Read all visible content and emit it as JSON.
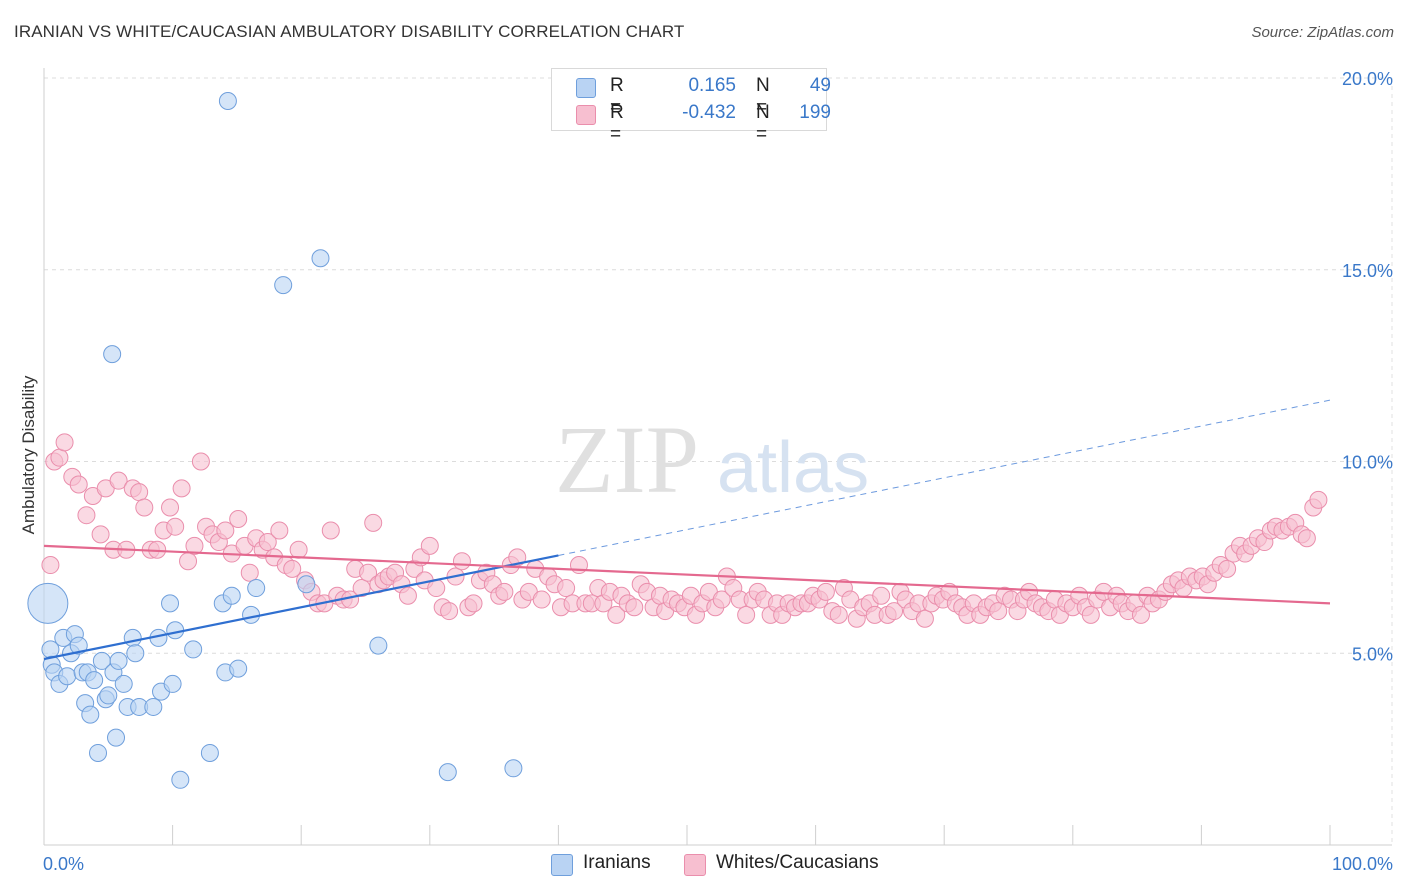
{
  "header": {
    "title": "IRANIAN VS WHITE/CAUCASIAN AMBULATORY DISABILITY CORRELATION CHART",
    "source": "Source: ZipAtlas.com"
  },
  "watermark": {
    "zip": "ZIP",
    "atlas": "atlas"
  },
  "colors": {
    "blue_fill": "#b9d3f3",
    "blue_stroke": "#6f9fdc",
    "blue_line": "#2f6fd0",
    "pink_fill": "#f7bfd0",
    "pink_stroke": "#ea8eac",
    "pink_line": "#e4698f",
    "tick_text": "#3a78c9"
  },
  "legend": {
    "rows": [
      {
        "r_label": "R =",
        "r_value": "0.165",
        "n_label": "N =",
        "n_value": "49",
        "color": "blue"
      },
      {
        "r_label": "R =",
        "r_value": "-0.432",
        "n_label": "N =",
        "n_value": "199",
        "color": "pink"
      }
    ]
  },
  "bottom_legend": {
    "items": [
      {
        "label": "Iranians"
      },
      {
        "label": "Whites/Caucasians"
      }
    ]
  },
  "chart_data": {
    "type": "scatter",
    "title": "IRANIAN VS WHITE/CAUCASIAN AMBULATORY DISABILITY CORRELATION CHART",
    "xlabel": "",
    "ylabel": "Ambulatory Disability",
    "xlim": [
      0,
      100
    ],
    "ylim": [
      0,
      20
    ],
    "x_tick_labels": [
      {
        "value": 0,
        "label": "0.0%"
      },
      {
        "value": 100,
        "label": "100.0%"
      }
    ],
    "y_tick_labels": [
      {
        "value": 5,
        "label": "5.0%"
      },
      {
        "value": 10,
        "label": "10.0%"
      },
      {
        "value": 15,
        "label": "15.0%"
      },
      {
        "value": 20,
        "label": "20.0%"
      }
    ],
    "grid": "horizontal dashed",
    "legend_position": "top-center",
    "series": [
      {
        "name": "Iranians",
        "color": "blue",
        "points": [
          [
            0.5,
            5.1
          ],
          [
            0.6,
            4.7
          ],
          [
            0.8,
            4.5
          ],
          [
            1.2,
            4.2
          ],
          [
            1.5,
            5.4
          ],
          [
            1.8,
            4.4
          ],
          [
            2.1,
            5.0
          ],
          [
            2.4,
            5.5
          ],
          [
            2.7,
            5.2
          ],
          [
            3.0,
            4.5
          ],
          [
            3.2,
            3.7
          ],
          [
            3.4,
            4.5
          ],
          [
            3.6,
            3.4
          ],
          [
            3.9,
            4.3
          ],
          [
            4.2,
            2.4
          ],
          [
            4.5,
            4.8
          ],
          [
            4.8,
            3.8
          ],
          [
            5.0,
            3.9
          ],
          [
            5.4,
            4.5
          ],
          [
            5.6,
            2.8
          ],
          [
            5.8,
            4.8
          ],
          [
            6.2,
            4.2
          ],
          [
            6.5,
            3.6
          ],
          [
            6.9,
            5.4
          ],
          [
            7.1,
            5.0
          ],
          [
            7.4,
            3.6
          ],
          [
            8.5,
            3.6
          ],
          [
            8.9,
            5.4
          ],
          [
            9.1,
            4.0
          ],
          [
            9.8,
            6.3
          ],
          [
            10.0,
            4.2
          ],
          [
            10.2,
            5.6
          ],
          [
            10.6,
            1.7
          ],
          [
            11.6,
            5.1
          ],
          [
            12.9,
            2.4
          ],
          [
            13.9,
            6.3
          ],
          [
            14.1,
            4.5
          ],
          [
            14.6,
            6.5
          ],
          [
            15.1,
            4.6
          ],
          [
            16.1,
            6.0
          ],
          [
            16.5,
            6.7
          ],
          [
            14.3,
            19.4
          ],
          [
            18.6,
            14.6
          ],
          [
            21.5,
            15.3
          ],
          [
            5.3,
            12.8
          ],
          [
            20.4,
            6.8
          ],
          [
            26.0,
            5.2
          ],
          [
            31.4,
            1.9
          ],
          [
            36.5,
            2.0
          ]
        ]
      },
      {
        "name": "Whites/Caucasians",
        "color": "pink",
        "points": [
          [
            0.5,
            7.3
          ],
          [
            0.8,
            10.0
          ],
          [
            1.2,
            10.1
          ],
          [
            1.6,
            10.5
          ],
          [
            2.2,
            9.6
          ],
          [
            2.7,
            9.4
          ],
          [
            3.3,
            8.6
          ],
          [
            3.8,
            9.1
          ],
          [
            4.4,
            8.1
          ],
          [
            4.8,
            9.3
          ],
          [
            5.4,
            7.7
          ],
          [
            5.8,
            9.5
          ],
          [
            6.4,
            7.7
          ],
          [
            6.9,
            9.3
          ],
          [
            7.4,
            9.2
          ],
          [
            7.8,
            8.8
          ],
          [
            8.3,
            7.7
          ],
          [
            8.8,
            7.7
          ],
          [
            9.3,
            8.2
          ],
          [
            9.8,
            8.8
          ],
          [
            10.2,
            8.3
          ],
          [
            10.7,
            9.3
          ],
          [
            11.2,
            7.4
          ],
          [
            11.7,
            7.8
          ],
          [
            12.2,
            10.0
          ],
          [
            12.6,
            8.3
          ],
          [
            13.1,
            8.1
          ],
          [
            13.6,
            7.9
          ],
          [
            14.1,
            8.2
          ],
          [
            14.6,
            7.6
          ],
          [
            15.1,
            8.5
          ],
          [
            15.6,
            7.8
          ],
          [
            16.0,
            7.1
          ],
          [
            16.5,
            8.0
          ],
          [
            17.0,
            7.7
          ],
          [
            17.4,
            7.9
          ],
          [
            17.9,
            7.5
          ],
          [
            18.3,
            8.2
          ],
          [
            18.8,
            7.3
          ],
          [
            19.3,
            7.2
          ],
          [
            19.8,
            7.7
          ],
          [
            20.3,
            6.9
          ],
          [
            20.8,
            6.6
          ],
          [
            21.3,
            6.3
          ],
          [
            21.8,
            6.3
          ],
          [
            22.3,
            8.2
          ],
          [
            22.8,
            6.5
          ],
          [
            23.3,
            6.4
          ],
          [
            23.8,
            6.4
          ],
          [
            24.2,
            7.2
          ],
          [
            24.7,
            6.7
          ],
          [
            25.2,
            7.1
          ],
          [
            25.6,
            8.4
          ],
          [
            26.0,
            6.8
          ],
          [
            26.4,
            6.9
          ],
          [
            26.8,
            7.0
          ],
          [
            27.3,
            7.1
          ],
          [
            27.8,
            6.8
          ],
          [
            28.3,
            6.5
          ],
          [
            28.8,
            7.2
          ],
          [
            29.3,
            7.5
          ],
          [
            29.6,
            6.9
          ],
          [
            30.0,
            7.8
          ],
          [
            30.5,
            6.7
          ],
          [
            31.0,
            6.2
          ],
          [
            31.5,
            6.1
          ],
          [
            32.0,
            7.0
          ],
          [
            32.5,
            7.4
          ],
          [
            33.0,
            6.2
          ],
          [
            33.4,
            6.3
          ],
          [
            33.9,
            6.9
          ],
          [
            34.4,
            7.1
          ],
          [
            34.9,
            6.8
          ],
          [
            35.4,
            6.5
          ],
          [
            35.8,
            6.6
          ],
          [
            36.3,
            7.3
          ],
          [
            36.8,
            7.5
          ],
          [
            37.2,
            6.4
          ],
          [
            37.7,
            6.6
          ],
          [
            38.2,
            7.2
          ],
          [
            38.7,
            6.4
          ],
          [
            39.2,
            7.0
          ],
          [
            39.7,
            6.8
          ],
          [
            40.2,
            6.2
          ],
          [
            40.6,
            6.7
          ],
          [
            41.1,
            6.3
          ],
          [
            41.6,
            7.3
          ],
          [
            42.1,
            6.3
          ],
          [
            42.6,
            6.3
          ],
          [
            43.1,
            6.7
          ],
          [
            43.5,
            6.3
          ],
          [
            44.0,
            6.6
          ],
          [
            44.5,
            6.0
          ],
          [
            44.9,
            6.5
          ],
          [
            45.4,
            6.3
          ],
          [
            45.9,
            6.2
          ],
          [
            46.4,
            6.8
          ],
          [
            46.9,
            6.6
          ],
          [
            47.4,
            6.2
          ],
          [
            47.9,
            6.5
          ],
          [
            48.3,
            6.1
          ],
          [
            48.8,
            6.4
          ],
          [
            49.3,
            6.3
          ],
          [
            49.8,
            6.2
          ],
          [
            50.3,
            6.5
          ],
          [
            50.7,
            6.0
          ],
          [
            51.2,
            6.3
          ],
          [
            51.7,
            6.6
          ],
          [
            52.2,
            6.2
          ],
          [
            52.7,
            6.4
          ],
          [
            53.1,
            7.0
          ],
          [
            53.6,
            6.7
          ],
          [
            54.1,
            6.4
          ],
          [
            54.6,
            6.0
          ],
          [
            55.1,
            6.4
          ],
          [
            55.5,
            6.6
          ],
          [
            56.0,
            6.4
          ],
          [
            56.5,
            6.0
          ],
          [
            57.0,
            6.3
          ],
          [
            57.4,
            6.0
          ],
          [
            57.9,
            6.3
          ],
          [
            58.4,
            6.2
          ],
          [
            58.9,
            6.3
          ],
          [
            59.4,
            6.3
          ],
          [
            59.8,
            6.5
          ],
          [
            60.3,
            6.4
          ],
          [
            60.8,
            6.6
          ],
          [
            61.3,
            6.1
          ],
          [
            61.8,
            6.0
          ],
          [
            62.2,
            6.7
          ],
          [
            62.7,
            6.4
          ],
          [
            63.2,
            5.9
          ],
          [
            63.7,
            6.2
          ],
          [
            64.2,
            6.3
          ],
          [
            64.6,
            6.0
          ],
          [
            65.1,
            6.5
          ],
          [
            65.6,
            6.0
          ],
          [
            66.1,
            6.1
          ],
          [
            66.6,
            6.6
          ],
          [
            67.0,
            6.4
          ],
          [
            67.5,
            6.1
          ],
          [
            68.0,
            6.3
          ],
          [
            68.5,
            5.9
          ],
          [
            69.0,
            6.3
          ],
          [
            69.4,
            6.5
          ],
          [
            69.9,
            6.4
          ],
          [
            70.4,
            6.6
          ],
          [
            70.9,
            6.3
          ],
          [
            71.4,
            6.2
          ],
          [
            71.8,
            6.0
          ],
          [
            72.3,
            6.3
          ],
          [
            72.8,
            6.0
          ],
          [
            73.3,
            6.2
          ],
          [
            73.8,
            6.3
          ],
          [
            74.2,
            6.1
          ],
          [
            74.7,
            6.5
          ],
          [
            75.2,
            6.4
          ],
          [
            75.7,
            6.1
          ],
          [
            76.2,
            6.4
          ],
          [
            76.6,
            6.6
          ],
          [
            77.1,
            6.3
          ],
          [
            77.6,
            6.2
          ],
          [
            78.1,
            6.1
          ],
          [
            78.6,
            6.4
          ],
          [
            79.0,
            6.0
          ],
          [
            79.5,
            6.3
          ],
          [
            80.0,
            6.2
          ],
          [
            80.5,
            6.5
          ],
          [
            81.0,
            6.2
          ],
          [
            81.4,
            6.0
          ],
          [
            81.9,
            6.4
          ],
          [
            82.4,
            6.6
          ],
          [
            82.9,
            6.2
          ],
          [
            83.4,
            6.5
          ],
          [
            83.8,
            6.3
          ],
          [
            84.3,
            6.1
          ],
          [
            84.8,
            6.3
          ],
          [
            85.3,
            6.0
          ],
          [
            85.8,
            6.5
          ],
          [
            86.2,
            6.3
          ],
          [
            86.7,
            6.4
          ],
          [
            87.2,
            6.6
          ],
          [
            87.7,
            6.8
          ],
          [
            88.2,
            6.9
          ],
          [
            88.6,
            6.7
          ],
          [
            89.1,
            7.0
          ],
          [
            89.6,
            6.9
          ],
          [
            90.1,
            7.0
          ],
          [
            90.5,
            6.8
          ],
          [
            91.0,
            7.1
          ],
          [
            91.5,
            7.3
          ],
          [
            92.0,
            7.2
          ],
          [
            92.5,
            7.6
          ],
          [
            93.0,
            7.8
          ],
          [
            93.4,
            7.6
          ],
          [
            93.9,
            7.8
          ],
          [
            94.4,
            8.0
          ],
          [
            94.9,
            7.9
          ],
          [
            95.4,
            8.2
          ],
          [
            95.8,
            8.3
          ],
          [
            96.3,
            8.2
          ],
          [
            96.8,
            8.3
          ],
          [
            97.3,
            8.4
          ],
          [
            97.8,
            8.1
          ],
          [
            98.2,
            8.0
          ],
          [
            98.7,
            8.8
          ],
          [
            99.1,
            9.0
          ]
        ]
      }
    ],
    "trend_lines": [
      {
        "series": "Iranians",
        "x": [
          0,
          40
        ],
        "y": [
          4.85,
          7.55
        ],
        "extended_dashed_to_x": 100,
        "extended_y": 11.6
      },
      {
        "series": "Whites/Caucasians",
        "x": [
          0,
          100
        ],
        "y": [
          7.8,
          6.3
        ]
      }
    ]
  }
}
